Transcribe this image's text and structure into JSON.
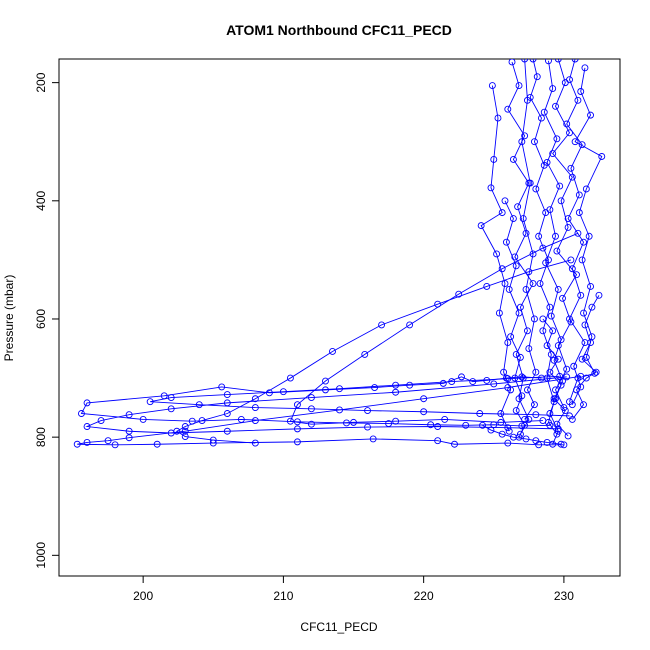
{
  "chart_data": {
    "type": "line",
    "title": "ATOM1 Northbound CFC11_PECD",
    "xlabel": "CFC11_PECD",
    "ylabel": "Pressure (mbar)",
    "xlim": [
      194,
      234
    ],
    "ylim": [
      1035,
      160
    ],
    "y_reversed": true,
    "x_ticks": [
      200,
      210,
      220,
      230
    ],
    "y_ticks": [
      200,
      400,
      600,
      800,
      1000
    ],
    "y_tick_labels_rotated": true,
    "grid": false,
    "legend": "none",
    "marker": "open-circle",
    "color": "#0000ff",
    "series": [
      {
        "points": [
          [
            227.8,
            160
          ],
          [
            228.1,
            190
          ],
          [
            227.6,
            225
          ],
          [
            228.4,
            260
          ],
          [
            227.9,
            300
          ],
          [
            228.6,
            340
          ],
          [
            228.0,
            380
          ],
          [
            228.7,
            420
          ],
          [
            228.2,
            460
          ],
          [
            228.9,
            500
          ],
          [
            228.3,
            540
          ],
          [
            229.0,
            580
          ],
          [
            228.5,
            620
          ],
          [
            229.1,
            660
          ],
          [
            228.8,
            700
          ],
          [
            229.3,
            740
          ],
          [
            228.9,
            775
          ],
          [
            229.5,
            795
          ]
        ]
      },
      {
        "points": [
          [
            229.6,
            160
          ],
          [
            230.1,
            200
          ],
          [
            229.4,
            240
          ],
          [
            230.4,
            285
          ],
          [
            229.2,
            320
          ],
          [
            230.6,
            360
          ],
          [
            229.8,
            400
          ],
          [
            230.3,
            445
          ],
          [
            229.5,
            485
          ],
          [
            230.9,
            525
          ],
          [
            229.9,
            565
          ],
          [
            230.5,
            605
          ],
          [
            229.6,
            645
          ],
          [
            230.2,
            685
          ],
          [
            229.4,
            720
          ],
          [
            230.0,
            750
          ]
        ]
      },
      {
        "points": [
          [
            226.3,
            165
          ],
          [
            226.8,
            205
          ],
          [
            226.0,
            245
          ],
          [
            227.2,
            290
          ],
          [
            226.4,
            330
          ],
          [
            227.5,
            370
          ],
          [
            226.7,
            410
          ],
          [
            227.3,
            455
          ],
          [
            226.5,
            495
          ],
          [
            227.8,
            540
          ],
          [
            226.9,
            580
          ],
          [
            227.4,
            620
          ],
          [
            226.6,
            660
          ],
          [
            227.1,
            700
          ],
          [
            226.8,
            735
          ],
          [
            227.5,
            770
          ],
          [
            226.9,
            795
          ]
        ]
      },
      {
        "points": [
          [
            231.5,
            175
          ],
          [
            231.2,
            215
          ],
          [
            231.9,
            255
          ],
          [
            230.8,
            300
          ],
          [
            232.7,
            325
          ],
          [
            231.6,
            380
          ],
          [
            231.1,
            420
          ],
          [
            231.8,
            460
          ],
          [
            231.3,
            500
          ],
          [
            231.9,
            545
          ],
          [
            231.4,
            590
          ],
          [
            232.0,
            630
          ],
          [
            231.6,
            665
          ],
          [
            232.2,
            692
          ],
          [
            231.0,
            700
          ],
          [
            230.4,
            740
          ]
        ]
      },
      {
        "points": [
          [
            224.9,
            205
          ],
          [
            225.3,
            260
          ],
          [
            225.0,
            330
          ],
          [
            224.8,
            378
          ],
          [
            225.6,
            420
          ],
          [
            224.1,
            442
          ],
          [
            225.2,
            490
          ],
          [
            225.8,
            540
          ],
          [
            225.4,
            590
          ],
          [
            226.0,
            640
          ],
          [
            225.7,
            690
          ],
          [
            226.2,
            720
          ],
          [
            225.5,
            760
          ],
          [
            226.1,
            790
          ]
        ]
      },
      {
        "points": [
          [
            228.4,
            700
          ],
          [
            227.0,
            698
          ],
          [
            225.9,
            700
          ],
          [
            224.5,
            704
          ],
          [
            223.5,
            706
          ],
          [
            222.7,
            698
          ],
          [
            221.4,
            709
          ],
          [
            219.0,
            712
          ],
          [
            216.5,
            716
          ],
          [
            213.0,
            720
          ],
          [
            209.0,
            725
          ],
          [
            205.6,
            715
          ],
          [
            201.5,
            730
          ],
          [
            196.0,
            742
          ],
          [
            195.6,
            760
          ],
          [
            200.0,
            770
          ],
          [
            203.5,
            773
          ],
          [
            207.0,
            770
          ],
          [
            211.0,
            774
          ],
          [
            214.5,
            776
          ],
          [
            217.5,
            777
          ],
          [
            220.5,
            779
          ],
          [
            223.0,
            780
          ],
          [
            225.0,
            779
          ],
          [
            227.0,
            781
          ],
          [
            229.0,
            780
          ]
        ]
      },
      {
        "points": [
          [
            229.7,
            697
          ],
          [
            226.0,
            701
          ],
          [
            222.0,
            706
          ],
          [
            218.0,
            712
          ],
          [
            214.0,
            718
          ],
          [
            210.0,
            723
          ],
          [
            206.0,
            728
          ],
          [
            202.0,
            733
          ],
          [
            200.5,
            740
          ],
          [
            204.0,
            745
          ],
          [
            208.0,
            750
          ],
          [
            212.0,
            752
          ],
          [
            216.0,
            755
          ],
          [
            220.0,
            757
          ],
          [
            224.0,
            760
          ],
          [
            228.0,
            762
          ],
          [
            230.4,
            764
          ]
        ]
      },
      {
        "points": [
          [
            230.2,
            698
          ],
          [
            225.0,
            710
          ],
          [
            218.0,
            724
          ],
          [
            212.0,
            733
          ],
          [
            206.0,
            742
          ],
          [
            202.0,
            752
          ],
          [
            199.0,
            762
          ],
          [
            197.0,
            772
          ],
          [
            196.0,
            782
          ],
          [
            199.0,
            790
          ],
          [
            202.0,
            793
          ],
          [
            206.0,
            790
          ],
          [
            211.0,
            786
          ],
          [
            216.0,
            783
          ],
          [
            221.0,
            782
          ],
          [
            226.0,
            784
          ],
          [
            229.6,
            786
          ]
        ]
      },
      {
        "points": [
          [
            231.2,
            697
          ],
          [
            226.0,
            716
          ],
          [
            220.0,
            735
          ],
          [
            214.0,
            754
          ],
          [
            208.0,
            772
          ],
          [
            203.0,
            790
          ],
          [
            199.0,
            801
          ],
          [
            197.5,
            806
          ],
          [
            196.0,
            809
          ],
          [
            195.3,
            812
          ],
          [
            198.0,
            813
          ],
          [
            201.0,
            812
          ],
          [
            205.0,
            810
          ],
          [
            211.0,
            808
          ],
          [
            216.4,
            803
          ],
          [
            221.0,
            806
          ],
          [
            222.2,
            812
          ],
          [
            226.0,
            810
          ],
          [
            228.2,
            813
          ],
          [
            230.0,
            813
          ]
        ]
      },
      {
        "points": [
          [
            230.5,
            500
          ],
          [
            227.5,
            520
          ],
          [
            224.5,
            545
          ],
          [
            221.0,
            575
          ],
          [
            217.0,
            610
          ],
          [
            213.5,
            655
          ],
          [
            210.5,
            700
          ],
          [
            208.0,
            735
          ],
          [
            206.0,
            760
          ],
          [
            204.2,
            772
          ],
          [
            203.0,
            782
          ],
          [
            202.4,
            790
          ],
          [
            203.0,
            799
          ],
          [
            205.0,
            805
          ],
          [
            208.0,
            810
          ]
        ]
      },
      {
        "points": [
          [
            231.0,
            455
          ],
          [
            228.5,
            480
          ],
          [
            225.6,
            515
          ],
          [
            222.5,
            558
          ],
          [
            219.0,
            610
          ],
          [
            215.8,
            660
          ],
          [
            213.0,
            705
          ],
          [
            211.0,
            745
          ],
          [
            210.5,
            773
          ],
          [
            212.0,
            778
          ],
          [
            215.0,
            775
          ],
          [
            218.0,
            773
          ],
          [
            221.5,
            770
          ],
          [
            225.5,
            775
          ],
          [
            228.5,
            772
          ]
        ]
      },
      {
        "points": [
          [
            227.2,
            160
          ],
          [
            227.4,
            230
          ],
          [
            227.0,
            300
          ],
          [
            227.6,
            370
          ],
          [
            227.1,
            430
          ],
          [
            227.8,
            490
          ],
          [
            227.3,
            550
          ],
          [
            227.9,
            600
          ],
          [
            227.5,
            650
          ],
          [
            228.0,
            690
          ],
          [
            227.4,
            720
          ],
          [
            227.9,
            745
          ],
          [
            227.2,
            770
          ]
        ]
      },
      {
        "points": [
          [
            230.8,
            160
          ],
          [
            230.4,
            195
          ],
          [
            231.0,
            230
          ],
          [
            230.2,
            270
          ],
          [
            231.3,
            305
          ],
          [
            230.5,
            345
          ],
          [
            231.1,
            390
          ],
          [
            230.3,
            430
          ],
          [
            231.4,
            470
          ],
          [
            230.6,
            515
          ],
          [
            231.2,
            560
          ],
          [
            230.4,
            600
          ],
          [
            231.5,
            640
          ],
          [
            230.7,
            680
          ],
          [
            231.2,
            715
          ],
          [
            230.6,
            745
          ]
        ]
      },
      {
        "points": [
          [
            228.9,
            163
          ],
          [
            229.2,
            210
          ],
          [
            228.6,
            250
          ],
          [
            229.5,
            295
          ],
          [
            228.8,
            335
          ],
          [
            229.7,
            375
          ],
          [
            229.0,
            415
          ],
          [
            229.4,
            460
          ],
          [
            228.7,
            505
          ],
          [
            229.6,
            550
          ],
          [
            229.1,
            595
          ],
          [
            229.8,
            635
          ],
          [
            229.3,
            670
          ],
          [
            229.9,
            705
          ],
          [
            229.4,
            735
          ],
          [
            229.0,
            760
          ],
          [
            229.6,
            790
          ],
          [
            229.2,
            812
          ]
        ]
      },
      {
        "points": [
          [
            225.8,
            400
          ],
          [
            226.4,
            430
          ],
          [
            225.9,
            470
          ],
          [
            226.6,
            510
          ],
          [
            226.1,
            550
          ],
          [
            226.8,
            590
          ],
          [
            226.2,
            630
          ],
          [
            226.9,
            665
          ],
          [
            226.5,
            700
          ],
          [
            227.0,
            730
          ],
          [
            226.6,
            755
          ],
          [
            227.2,
            780
          ],
          [
            226.8,
            800
          ]
        ]
      },
      {
        "points": [
          [
            232.5,
            560
          ],
          [
            232.0,
            580
          ],
          [
            231.5,
            610
          ],
          [
            231.9,
            640
          ],
          [
            231.3,
            668
          ],
          [
            232.3,
            690
          ],
          [
            231.6,
            700
          ],
          [
            230.9,
            720
          ],
          [
            231.4,
            745
          ],
          [
            230.6,
            770
          ]
        ]
      },
      {
        "points": [
          [
            224.2,
            780
          ],
          [
            224.8,
            788
          ],
          [
            225.6,
            795
          ],
          [
            226.4,
            800
          ],
          [
            227.3,
            803
          ],
          [
            228.0,
            806
          ],
          [
            228.8,
            809
          ],
          [
            229.8,
            812
          ]
        ]
      },
      {
        "points": [
          [
            228.5,
            600
          ],
          [
            229.2,
            620
          ],
          [
            228.8,
            645
          ],
          [
            229.6,
            668
          ],
          [
            229.0,
            690
          ],
          [
            229.8,
            712
          ],
          [
            229.3,
            735
          ],
          [
            230.1,
            755
          ],
          [
            229.5,
            778
          ],
          [
            230.3,
            798
          ]
        ]
      }
    ]
  }
}
